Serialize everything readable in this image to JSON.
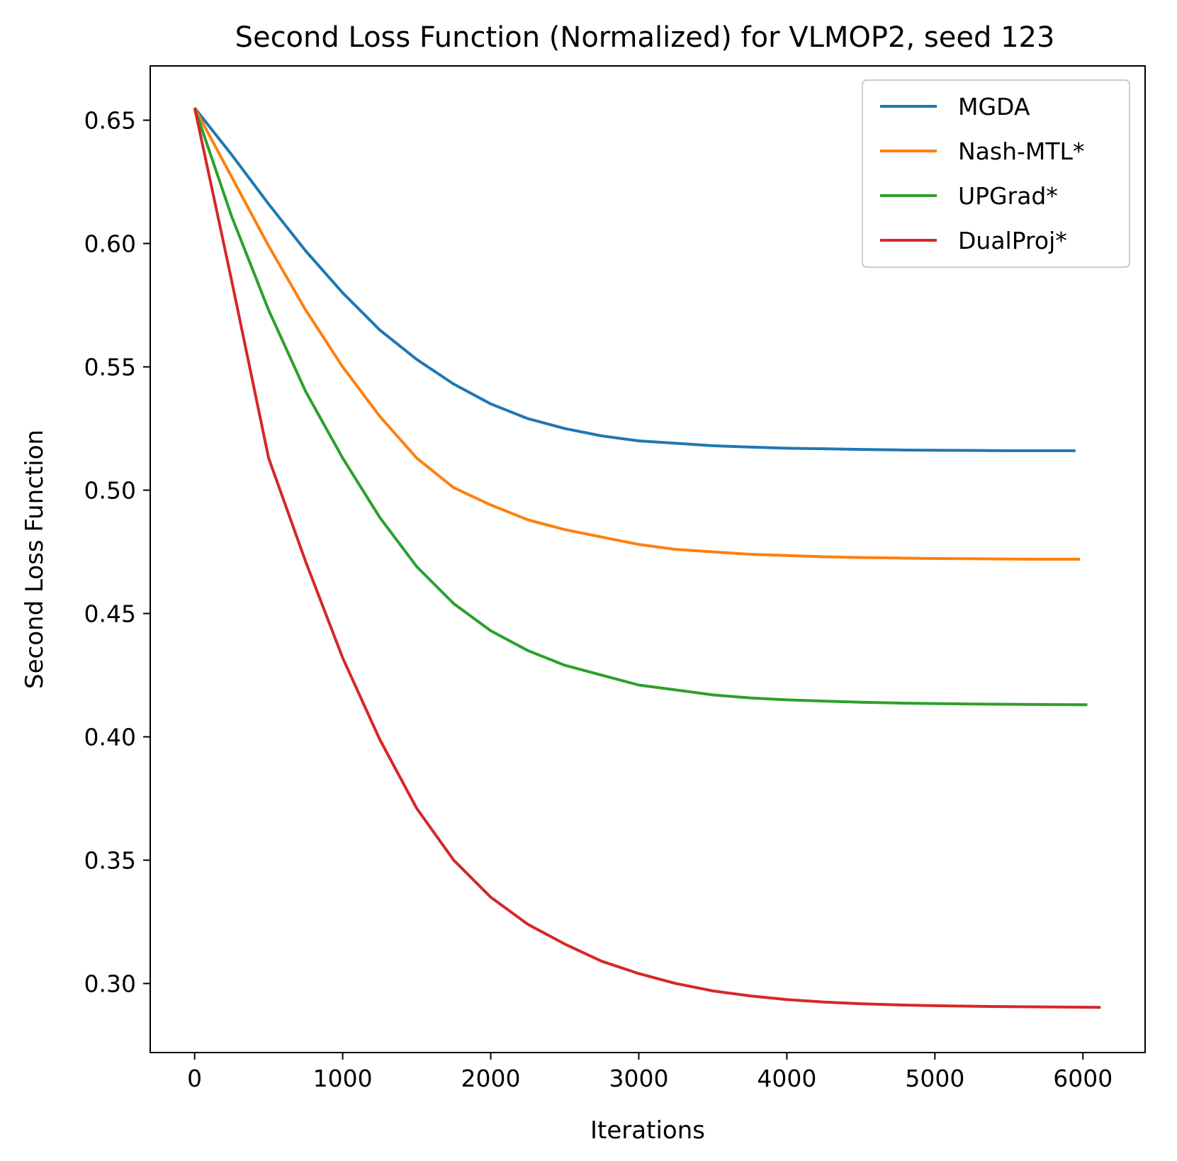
{
  "chart_data": {
    "type": "line",
    "title": "Second Loss Function (Normalized) for VLMOP2, seed 123",
    "xlabel": "Iterations",
    "ylabel": "Second Loss Function",
    "xlim": [
      -300,
      6420
    ],
    "ylim": [
      0.272,
      0.672
    ],
    "xticks": [
      0,
      1000,
      2000,
      3000,
      4000,
      5000,
      6000
    ],
    "xtick_labels": [
      "0",
      "1000",
      "2000",
      "3000",
      "4000",
      "5000",
      "6000"
    ],
    "yticks": [
      0.3,
      0.35,
      0.4,
      0.45,
      0.5,
      0.55,
      0.6,
      0.65
    ],
    "ytick_labels": [
      "0.30",
      "0.35",
      "0.40",
      "0.45",
      "0.50",
      "0.55",
      "0.60",
      "0.65"
    ],
    "grid": false,
    "legend_position": "top-right",
    "series": [
      {
        "name": "MGDA",
        "color": "#1f77b4",
        "x": [
          0,
          250,
          500,
          750,
          1000,
          1250,
          1500,
          1750,
          2000,
          2250,
          2500,
          2750,
          3000,
          3250,
          3500,
          3750,
          4000,
          4250,
          4500,
          4750,
          5000,
          5250,
          5500,
          5750,
          5950
        ],
        "y": [
          0.655,
          0.636,
          0.616,
          0.597,
          0.58,
          0.565,
          0.553,
          0.543,
          0.535,
          0.529,
          0.525,
          0.522,
          0.52,
          0.519,
          0.518,
          0.5175,
          0.517,
          0.5168,
          0.5165,
          0.5163,
          0.5162,
          0.5161,
          0.516,
          0.516,
          0.516
        ]
      },
      {
        "name": "Nash-MTL*",
        "color": "#ff7f0e",
        "x": [
          0,
          250,
          500,
          750,
          1000,
          1250,
          1500,
          1750,
          2000,
          2250,
          2500,
          2750,
          3000,
          3250,
          3500,
          3750,
          4000,
          4250,
          4500,
          4750,
          5000,
          5250,
          5500,
          5750,
          5980
        ],
        "y": [
          0.655,
          0.627,
          0.599,
          0.573,
          0.55,
          0.53,
          0.513,
          0.501,
          0.494,
          0.488,
          0.484,
          0.481,
          0.478,
          0.476,
          0.475,
          0.474,
          0.4735,
          0.473,
          0.4727,
          0.4725,
          0.4723,
          0.4722,
          0.4721,
          0.472,
          0.472
        ]
      },
      {
        "name": "UPGrad*",
        "color": "#2ca02c",
        "x": [
          0,
          250,
          500,
          750,
          1000,
          1250,
          1500,
          1750,
          2000,
          2250,
          2500,
          2750,
          3000,
          3250,
          3500,
          3750,
          4000,
          4250,
          4500,
          4750,
          5000,
          5250,
          5500,
          5750,
          6030
        ],
        "y": [
          0.655,
          0.611,
          0.573,
          0.54,
          0.513,
          0.489,
          0.469,
          0.454,
          0.443,
          0.435,
          0.429,
          0.425,
          0.421,
          0.419,
          0.417,
          0.4158,
          0.415,
          0.4145,
          0.414,
          0.4137,
          0.4135,
          0.4133,
          0.4132,
          0.4131,
          0.413
        ]
      },
      {
        "name": "DualProj*",
        "color": "#d62728",
        "x": [
          0,
          250,
          500,
          750,
          1000,
          1250,
          1500,
          1750,
          2000,
          2250,
          2500,
          2750,
          3000,
          3250,
          3500,
          3750,
          4000,
          4250,
          4500,
          4750,
          5000,
          5250,
          5500,
          5750,
          6120
        ],
        "y": [
          0.655,
          0.585,
          0.513,
          0.471,
          0.432,
          0.399,
          0.371,
          0.35,
          0.335,
          0.324,
          0.316,
          0.309,
          0.304,
          0.3,
          0.297,
          0.295,
          0.2935,
          0.2925,
          0.2918,
          0.2913,
          0.291,
          0.2908,
          0.2906,
          0.2905,
          0.2903
        ]
      }
    ]
  }
}
